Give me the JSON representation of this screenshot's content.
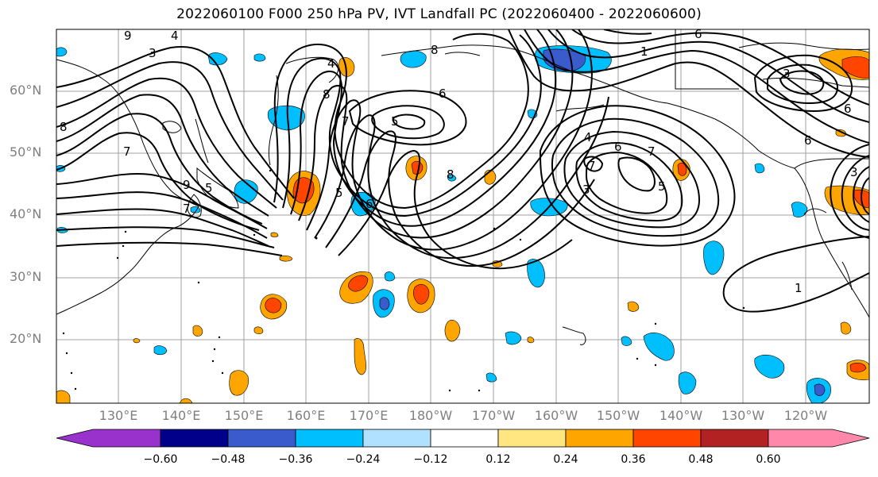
{
  "title": "2022060100 F000 250 hPa PV, IVT Landfall PC (2022060400 - 2022060600)",
  "latitude_labels": [
    "60°N",
    "50°N",
    "40°N",
    "30°N",
    "20°N"
  ],
  "longitude_labels": [
    "130°E",
    "140°E",
    "150°E",
    "160°E",
    "170°E",
    "180°W",
    "170°W",
    "160°W",
    "150°W",
    "140°W",
    "130°W",
    "120°W"
  ],
  "colorbar": {
    "colors": [
      "#9932cc",
      "#00008b",
      "#3a5bcc",
      "#00bfff",
      "#b0e2ff",
      "#ffffff",
      "#ffe680",
      "#ffa500",
      "#ff4500",
      "#b22222",
      "#ff88aa"
    ],
    "tick_labels": [
      "−0.60",
      "−0.48",
      "−0.36",
      "−0.24",
      "−0.12",
      "0.12",
      "0.24",
      "0.36",
      "0.48",
      "0.60"
    ]
  },
  "contour_labels": [
    "9",
    "8",
    "7",
    "6",
    "5",
    "4",
    "3",
    "2",
    "1"
  ],
  "colors": {
    "contour": "#000000",
    "grid": "#a0a0a0",
    "coast": "#000000",
    "axis_text": "#7f7f7f"
  }
}
